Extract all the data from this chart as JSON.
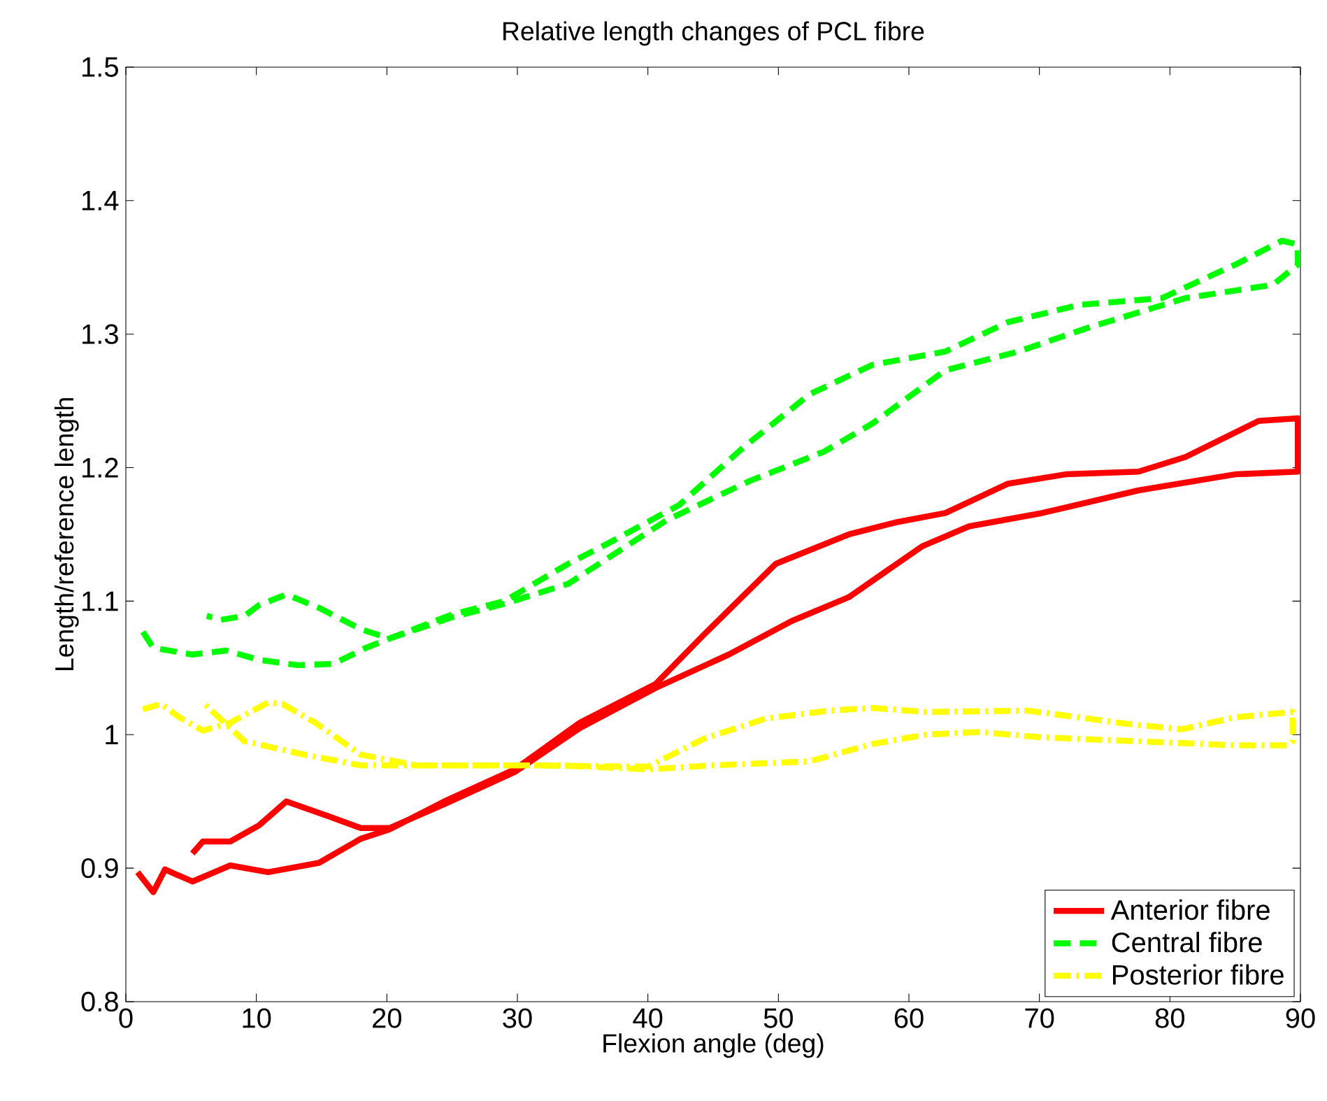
{
  "chart_data": {
    "type": "line",
    "title": "Relative length changes of PCL fibre",
    "xlabel": "Flexion angle (deg)",
    "ylabel": "Length/reference length",
    "xlim": [
      0,
      90
    ],
    "ylim": [
      0.8,
      1.5
    ],
    "xticks": [
      0,
      10,
      20,
      30,
      40,
      50,
      60,
      70,
      80,
      90
    ],
    "yticks": [
      0.8,
      0.9,
      1,
      1.1,
      1.2,
      1.3,
      1.4,
      1.5
    ],
    "grid": false,
    "legend": "bottom right",
    "marker": "none",
    "series": [
      {
        "name": "Anterior fibre",
        "color": "#ff0000",
        "line_style": "solid",
        "x": [
          0.9,
          2.1,
          3,
          5.1,
          8,
          10.9,
          14.8,
          18,
          20.2,
          24.4,
          29.8,
          34.8,
          40.6,
          44.3,
          49.8,
          55.4,
          59,
          62.8,
          67.6,
          72,
          77.6,
          81.2,
          86.8,
          89.8,
          89.8,
          85,
          77.6,
          70.2,
          64.6,
          61,
          55.4,
          51,
          46.2,
          40.6,
          34.8,
          29.8,
          24.4,
          20.2,
          18,
          15.5,
          12.3,
          10.2,
          8,
          5.9,
          5.1
        ],
        "values": [
          0.897,
          0.882,
          0.899,
          0.89,
          0.902,
          0.897,
          0.904,
          0.922,
          0.929,
          0.95,
          0.974,
          1.009,
          1.038,
          1.075,
          1.128,
          1.15,
          1.159,
          1.166,
          1.188,
          1.195,
          1.197,
          1.208,
          1.235,
          1.237,
          1.197,
          1.195,
          1.183,
          1.166,
          1.156,
          1.141,
          1.103,
          1.085,
          1.06,
          1.035,
          1.005,
          0.972,
          0.948,
          0.93,
          0.93,
          0.939,
          0.95,
          0.932,
          0.92,
          0.92,
          0.911
        ]
      },
      {
        "name": "Central fibre",
        "color": "#00ff00",
        "line_style": "dashed",
        "x": [
          1.3,
          2.1,
          5.1,
          7.7,
          10.2,
          13.2,
          15.9,
          18.4,
          20.2,
          25,
          29,
          33.9,
          36.9,
          42.4,
          47.3,
          52.4,
          57.2,
          62.8,
          67.6,
          73.1,
          79.4,
          85,
          88.6,
          89.8,
          89.8,
          87.9,
          81.2,
          73.8,
          68.4,
          62.8,
          57.2,
          53.5,
          47.8,
          41.5,
          36.9,
          33.9,
          29,
          25,
          20.2,
          18,
          14.8,
          12.3,
          10.2,
          9.1,
          7.3,
          6.2
        ],
        "values": [
          1.077,
          1.065,
          1.06,
          1.063,
          1.056,
          1.052,
          1.053,
          1.065,
          1.072,
          1.09,
          1.1,
          1.128,
          1.143,
          1.172,
          1.215,
          1.255,
          1.277,
          1.287,
          1.309,
          1.322,
          1.327,
          1.352,
          1.37,
          1.367,
          1.352,
          1.337,
          1.327,
          1.305,
          1.287,
          1.273,
          1.233,
          1.212,
          1.19,
          1.161,
          1.132,
          1.113,
          1.098,
          1.088,
          1.072,
          1.079,
          1.095,
          1.105,
          1.097,
          1.089,
          1.086,
          1.089
        ]
      },
      {
        "name": "Posterior fibre",
        "color": "#ffff00",
        "line_style": "dashdot",
        "x": [
          1.3,
          2.7,
          4.1,
          5.9,
          8,
          10.9,
          12,
          14.5,
          18,
          22.3,
          30,
          40,
          44.3,
          49,
          53.9,
          57.2,
          61.3,
          69.1,
          76.8,
          80.9,
          85,
          89.4,
          89.4,
          89,
          85,
          77.6,
          70.2,
          65.4,
          61.3,
          57.2,
          52.4,
          45,
          40,
          33.2,
          25,
          18,
          13.7,
          9.1,
          5.9
        ],
        "values": [
          1.019,
          1.023,
          1.013,
          1.003,
          1.009,
          1.024,
          1.023,
          1.009,
          0.985,
          0.977,
          0.977,
          0.976,
          0.997,
          1.012,
          1.018,
          1.02,
          1.017,
          1.018,
          1.008,
          1.004,
          1.013,
          1.017,
          0.995,
          0.992,
          0.992,
          0.995,
          0.998,
          1.002,
          1.0,
          0.993,
          0.98,
          0.977,
          0.974,
          0.977,
          0.977,
          0.977,
          0.985,
          0.995,
          1.024
        ]
      }
    ]
  }
}
